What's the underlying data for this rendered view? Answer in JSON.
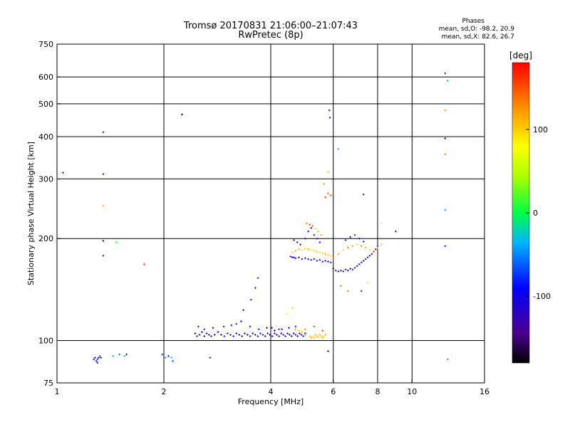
{
  "chart_data": {
    "type": "scatter",
    "title": "Tromsø 20170831 21:06:00–21:07:43",
    "subtitle": "RwPretec (8p)",
    "legend": {
      "heading": "Phases",
      "line1": "mean, sd,O: -98.2, 20.9",
      "line2": "mean, sd,X: 82.6, 26.7"
    },
    "xlabel": "Frequency [MHz]",
    "ylabel": "Stationary phase Virtual Height [km]",
    "x_scale": "log2",
    "y_scale": "log",
    "xlim": [
      1,
      16
    ],
    "ylim": [
      75,
      750
    ],
    "x_ticks": [
      1,
      2,
      4,
      6,
      8,
      10,
      16
    ],
    "x_gridlines": [
      2,
      4,
      6,
      8,
      10
    ],
    "y_ticks": [
      75,
      100,
      200,
      300,
      400,
      500,
      600,
      750
    ],
    "y_gridlines": [
      100,
      200,
      300,
      400,
      500,
      600
    ],
    "grid": true,
    "colorbar": {
      "label": "[deg]",
      "range": [
        -180,
        180
      ],
      "ticks": [
        100,
        0,
        -100
      ]
    },
    "points": [
      [
        1.04,
        313,
        -120
      ],
      [
        1.35,
        412,
        -150
      ],
      [
        1.35,
        310,
        -150
      ],
      [
        1.35,
        250,
        120
      ],
      [
        1.35,
        197,
        -170
      ],
      [
        1.35,
        178,
        -150
      ],
      [
        1.47,
        195,
        10
      ],
      [
        1.76,
        168,
        160
      ],
      [
        2.25,
        465,
        -180
      ],
      [
        1.27,
        88,
        -100
      ],
      [
        1.28,
        89,
        -90
      ],
      [
        1.29,
        87,
        -110
      ],
      [
        1.3,
        88,
        -80
      ],
      [
        1.31,
        89,
        -100
      ],
      [
        1.32,
        90,
        -60
      ],
      [
        1.33,
        89,
        -90
      ],
      [
        1.3,
        86,
        -120
      ],
      [
        1.44,
        90,
        -40
      ],
      [
        1.5,
        91,
        -60
      ],
      [
        1.55,
        90,
        -30
      ],
      [
        1.57,
        91,
        -100
      ],
      [
        1.98,
        91,
        -80
      ],
      [
        2.02,
        89,
        -50
      ],
      [
        2.06,
        90,
        -90
      ],
      [
        2.1,
        89,
        -30
      ],
      [
        2.12,
        87,
        -70
      ],
      [
        2.7,
        89,
        -120
      ],
      [
        2.45,
        105,
        -100
      ],
      [
        2.48,
        103,
        -80
      ],
      [
        2.52,
        104,
        -120
      ],
      [
        2.56,
        106,
        -100
      ],
      [
        2.6,
        103,
        -90
      ],
      [
        2.64,
        105,
        -110
      ],
      [
        2.68,
        104,
        -100
      ],
      [
        2.72,
        103,
        -130
      ],
      [
        2.78,
        104,
        -100
      ],
      [
        2.84,
        106,
        -90
      ],
      [
        2.9,
        104,
        -110
      ],
      [
        2.96,
        103,
        -100
      ],
      [
        3.02,
        105,
        -120
      ],
      [
        3.08,
        104,
        -100
      ],
      [
        3.14,
        103,
        -80
      ],
      [
        3.2,
        105,
        -110
      ],
      [
        3.26,
        104,
        -100
      ],
      [
        3.32,
        103,
        -130
      ],
      [
        3.38,
        105,
        -100
      ],
      [
        3.44,
        104,
        -90
      ],
      [
        3.5,
        103,
        -110
      ],
      [
        3.56,
        105,
        -100
      ],
      [
        3.62,
        104,
        -120
      ],
      [
        3.68,
        103,
        -100
      ],
      [
        3.74,
        105,
        -80
      ],
      [
        3.8,
        104,
        -110
      ],
      [
        3.86,
        103,
        -100
      ],
      [
        3.92,
        105,
        -130
      ],
      [
        3.98,
        104,
        -100
      ],
      [
        4.04,
        103,
        -90
      ],
      [
        4.1,
        105,
        -110
      ],
      [
        4.16,
        104,
        -100
      ],
      [
        4.22,
        103,
        -120
      ],
      [
        4.28,
        105,
        -100
      ],
      [
        4.34,
        104,
        -80
      ],
      [
        4.4,
        103,
        -110
      ],
      [
        4.46,
        105,
        -100
      ],
      [
        4.52,
        104,
        -130
      ],
      [
        4.58,
        103,
        -100
      ],
      [
        4.64,
        105,
        -90
      ],
      [
        4.7,
        104,
        -110
      ],
      [
        4.76,
        103,
        -100
      ],
      [
        4.82,
        105,
        -120
      ],
      [
        4.88,
        104,
        -100
      ],
      [
        4.94,
        103,
        -80
      ],
      [
        5.0,
        105,
        -110
      ],
      [
        2.5,
        110,
        -90
      ],
      [
        2.6,
        108,
        -110
      ],
      [
        2.75,
        109,
        -100
      ],
      [
        2.95,
        110,
        -90
      ],
      [
        3.1,
        111,
        -110
      ],
      [
        3.2,
        112,
        -80
      ],
      [
        3.3,
        114,
        -120
      ],
      [
        3.5,
        110,
        -100
      ],
      [
        3.7,
        108,
        -90
      ],
      [
        3.9,
        109,
        -110
      ],
      [
        4.1,
        107,
        -100
      ],
      [
        4.3,
        108,
        -120
      ],
      [
        4.5,
        109,
        -90
      ],
      [
        4.7,
        110,
        -100
      ],
      [
        3.35,
        123,
        -110
      ],
      [
        3.52,
        132,
        -100
      ],
      [
        3.62,
        143,
        -120
      ],
      [
        3.68,
        153,
        -100
      ],
      [
        4.03,
        109,
        -150
      ],
      [
        4.22,
        108,
        -140
      ],
      [
        4.45,
        120,
        80
      ],
      [
        4.6,
        125,
        40
      ],
      [
        4.7,
        108,
        120
      ],
      [
        4.8,
        107,
        100
      ],
      [
        4.9,
        106,
        110
      ],
      [
        5.0,
        108,
        130
      ],
      [
        5.0,
        104,
        120
      ],
      [
        5.15,
        103,
        100
      ],
      [
        5.2,
        102,
        120
      ],
      [
        5.25,
        103,
        90
      ],
      [
        5.3,
        102,
        110
      ],
      [
        5.35,
        104,
        100
      ],
      [
        5.4,
        103,
        120
      ],
      [
        5.45,
        102,
        90
      ],
      [
        5.5,
        104,
        110
      ],
      [
        5.55,
        103,
        100
      ],
      [
        5.6,
        102,
        120
      ],
      [
        5.65,
        103,
        90
      ],
      [
        5.7,
        104,
        110
      ],
      [
        5.3,
        110,
        160
      ],
      [
        5.6,
        107,
        160
      ],
      [
        5.8,
        93,
        -120
      ],
      [
        4.55,
        177,
        -120
      ],
      [
        4.6,
        176,
        -100
      ],
      [
        4.65,
        176,
        -130
      ],
      [
        4.7,
        175,
        -110
      ],
      [
        4.8,
        176,
        -120
      ],
      [
        4.9,
        174,
        -100
      ],
      [
        5.0,
        175,
        -130
      ],
      [
        5.1,
        174,
        -110
      ],
      [
        5.2,
        173,
        -120
      ],
      [
        5.3,
        174,
        -100
      ],
      [
        5.4,
        172,
        -130
      ],
      [
        5.5,
        173,
        -110
      ],
      [
        5.6,
        171,
        -120
      ],
      [
        5.7,
        172,
        -100
      ],
      [
        5.8,
        171,
        -130
      ],
      [
        5.9,
        170,
        -110
      ],
      [
        4.6,
        182,
        100
      ],
      [
        4.7,
        184,
        120
      ],
      [
        4.8,
        186,
        110
      ],
      [
        4.9,
        185,
        90
      ],
      [
        5.0,
        187,
        100
      ],
      [
        5.1,
        186,
        120
      ],
      [
        5.2,
        185,
        80
      ],
      [
        5.3,
        184,
        100
      ],
      [
        5.4,
        183,
        110
      ],
      [
        5.5,
        182,
        90
      ],
      [
        5.6,
        181,
        100
      ],
      [
        5.7,
        180,
        120
      ],
      [
        5.8,
        179,
        100
      ],
      [
        5.9,
        178,
        90
      ],
      [
        4.65,
        198,
        -120
      ],
      [
        4.75,
        195,
        -130
      ],
      [
        4.85,
        192,
        -120
      ],
      [
        5.0,
        200,
        -110
      ],
      [
        5.1,
        210,
        -100
      ],
      [
        5.2,
        215,
        -120
      ],
      [
        5.3,
        205,
        -130
      ],
      [
        5.4,
        200,
        -110
      ],
      [
        5.5,
        195,
        -120
      ],
      [
        5.05,
        222,
        130
      ],
      [
        5.15,
        220,
        150
      ],
      [
        5.25,
        218,
        140
      ],
      [
        5.35,
        214,
        100
      ],
      [
        5.45,
        210,
        110
      ],
      [
        5.55,
        205,
        120
      ],
      [
        5.7,
        265,
        160
      ],
      [
        5.8,
        272,
        140
      ],
      [
        5.9,
        268,
        150
      ],
      [
        5.65,
        290,
        130
      ],
      [
        5.8,
        315,
        30
      ],
      [
        5.85,
        478,
        -160
      ],
      [
        5.87,
        455,
        -130
      ],
      [
        6.0,
        163,
        -110
      ],
      [
        6.1,
        161,
        -120
      ],
      [
        6.2,
        160,
        -100
      ],
      [
        6.3,
        161,
        -130
      ],
      [
        6.4,
        160,
        -110
      ],
      [
        6.5,
        162,
        -120
      ],
      [
        6.6,
        161,
        -100
      ],
      [
        6.7,
        163,
        -130
      ],
      [
        6.8,
        162,
        -110
      ],
      [
        6.9,
        164,
        -120
      ],
      [
        7.0,
        166,
        -100
      ],
      [
        7.1,
        168,
        -130
      ],
      [
        7.2,
        170,
        -110
      ],
      [
        7.3,
        172,
        -120
      ],
      [
        7.4,
        174,
        -100
      ],
      [
        7.5,
        176,
        -130
      ],
      [
        7.6,
        178,
        -110
      ],
      [
        7.7,
        180,
        -120
      ],
      [
        7.8,
        183,
        -100
      ],
      [
        7.9,
        186,
        -130
      ],
      [
        8.0,
        190,
        -110
      ],
      [
        6.0,
        175,
        140
      ],
      [
        6.2,
        180,
        120
      ],
      [
        6.4,
        185,
        100
      ],
      [
        6.6,
        188,
        140
      ],
      [
        6.8,
        190,
        120
      ],
      [
        7.0,
        192,
        100
      ],
      [
        7.2,
        190,
        140
      ],
      [
        7.4,
        188,
        120
      ],
      [
        7.6,
        185,
        100
      ],
      [
        7.8,
        183,
        140
      ],
      [
        8.0,
        188,
        120
      ],
      [
        8.2,
        192,
        100
      ],
      [
        6.5,
        198,
        -120
      ],
      [
        6.7,
        202,
        -110
      ],
      [
        6.9,
        205,
        -130
      ],
      [
        7.1,
        200,
        -120
      ],
      [
        7.3,
        196,
        -110
      ],
      [
        6.2,
        368,
        -40
      ],
      [
        7.3,
        270,
        -130
      ],
      [
        8.2,
        222,
        80
      ],
      [
        9.0,
        210,
        -120
      ],
      [
        6.3,
        145,
        130
      ],
      [
        6.6,
        140,
        140
      ],
      [
        7.2,
        140,
        -120
      ],
      [
        7.5,
        148,
        90
      ],
      [
        12.4,
        615,
        -140
      ],
      [
        12.6,
        585,
        -30
      ],
      [
        12.4,
        478,
        130
      ],
      [
        12.4,
        395,
        -170
      ],
      [
        12.4,
        355,
        140
      ],
      [
        12.4,
        243,
        -50
      ],
      [
        12.4,
        190,
        -120
      ],
      [
        12.6,
        88,
        150
      ]
    ]
  }
}
